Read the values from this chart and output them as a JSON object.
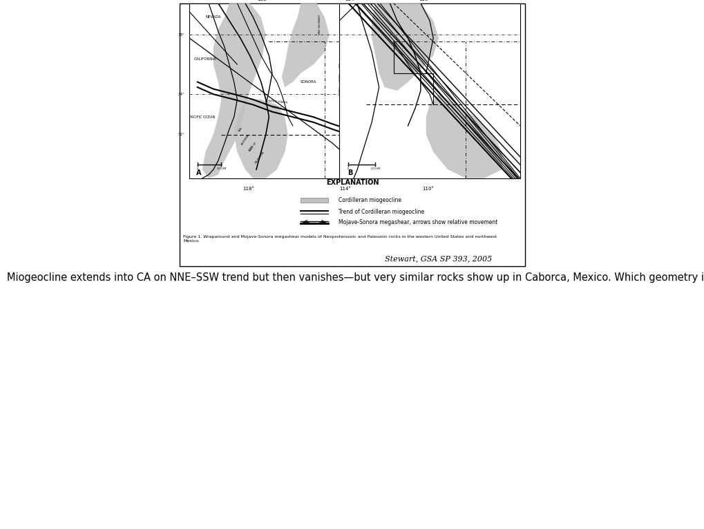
{
  "figure_bg": "#ffffff",
  "gray_shading": "#c0c0c0",
  "title_text": "Miogeocline extends into CA on NNE–SSW trend but then vanishes—but very similar rocks show up in Caborca, Mexico. Which geometry is right?",
  "explanation_title": "EXPLANATION",
  "legend_item1": "Cordilleran miogeocline",
  "legend_item2": "Trend of Cordilleran miogeocline",
  "legend_item3": "Mojave-Sonora megashear, arrows show relative movement",
  "figure_caption": "Figure 1. Wraparound and Mojave-Sonora megashear models of Neoproterozoic and Paleozoic rocks in the western United States and northwest\nMexico.",
  "source_text": "Stewart, GSA SP 393, 2005",
  "label_A": "A",
  "label_B": "B",
  "lat_38": "38°",
  "lat_34": "34°",
  "lat_32": "32°",
  "lon_118": "118°",
  "lon_114": "114°",
  "lon_110": "110°"
}
